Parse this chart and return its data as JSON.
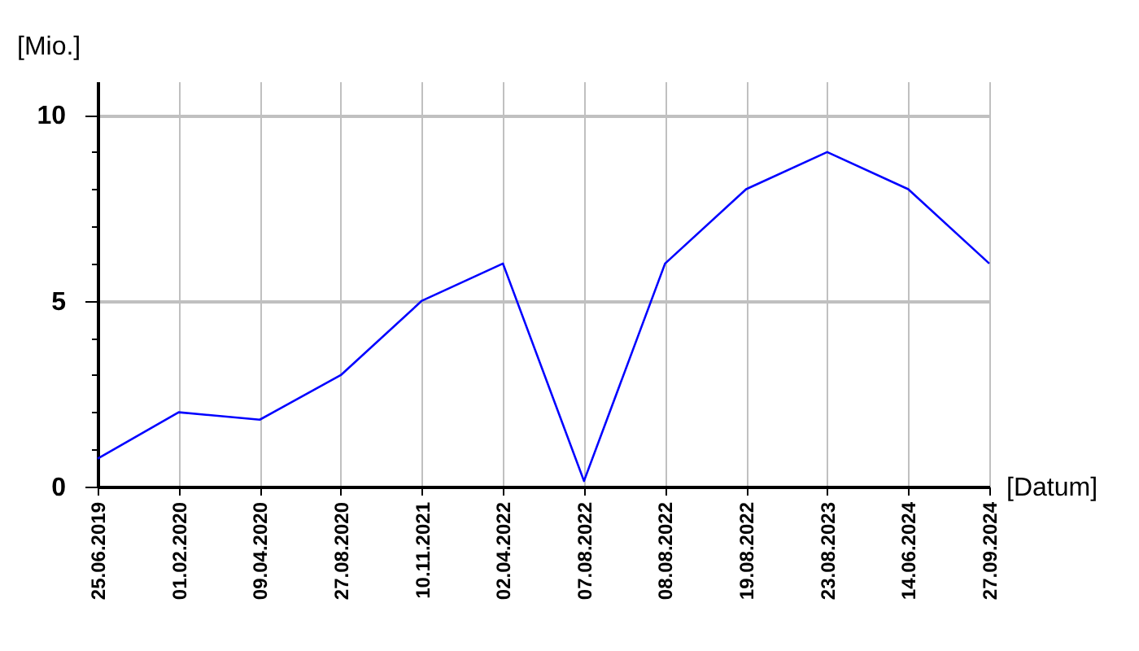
{
  "chart_data": {
    "type": "line",
    "xlabel": "[Datum]",
    "ylabel": "[Mio.]",
    "categories": [
      "25.06.2019",
      "01.02.2020",
      "09.04.2020",
      "27.08.2020",
      "10.11.2021",
      "02.04.2022",
      "07.08.2022",
      "08.08.2022",
      "19.08.2022",
      "23.08.2023",
      "14.06.2024",
      "27.09.2024"
    ],
    "series": [
      {
        "color": "#0000ff",
        "values": [
          0.75,
          2,
          1.8,
          3,
          5,
          6,
          0.15,
          6,
          8,
          9,
          8,
          6
        ]
      }
    ],
    "ylim": [
      0,
      10.9
    ],
    "yticks": [
      0,
      {
        "value": 1,
        "label": null
      },
      {
        "value": 2,
        "label": null
      },
      {
        "value": 3,
        "label": null
      },
      {
        "value": 4,
        "label": null
      },
      5,
      {
        "value": 6,
        "label": null
      },
      {
        "value": 7,
        "label": null
      },
      {
        "value": 8,
        "label": null
      },
      {
        "value": 9,
        "label": null
      },
      10
    ],
    "grid": true,
    "legend": false,
    "marker": "none",
    "line_style": "solid"
  }
}
